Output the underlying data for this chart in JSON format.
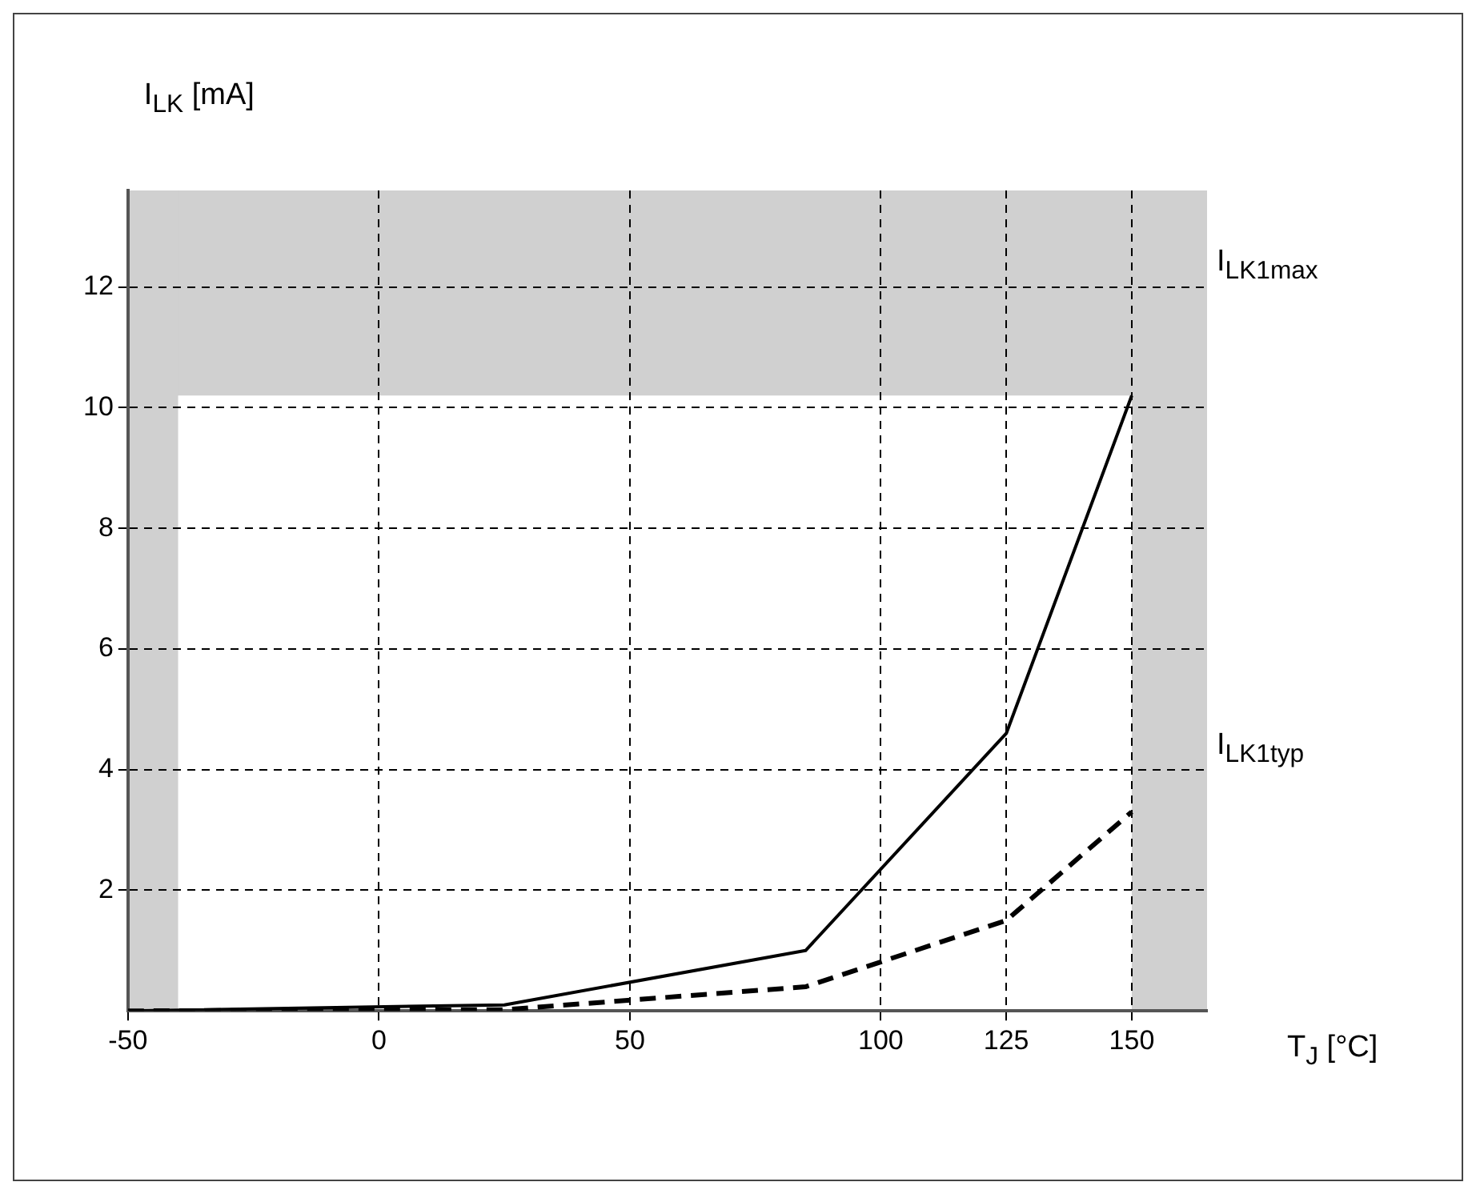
{
  "chart_data": {
    "type": "line",
    "xlabel": "T$_{J}$ [°C]",
    "ylabel": "I$_{LK}$ [mA]",
    "xlim": [
      -50,
      165
    ],
    "ylim": [
      0,
      13.6
    ],
    "xticks": [
      -50,
      0,
      50,
      100,
      125,
      150
    ],
    "yticks": [
      2,
      4,
      6,
      8,
      10,
      12
    ],
    "grid": true,
    "marker": "none",
    "series": [
      {
        "color": "#000000",
        "line_style": "solid",
        "x": [
          -50,
          25,
          85,
          125,
          150
        ],
        "values": [
          0,
          0.1,
          1,
          4.6,
          10.2
        ]
      },
      {
        "color": "#000000",
        "line_style": "dashed",
        "x": [
          -50,
          25,
          85,
          125,
          150
        ],
        "values": [
          0,
          0.02,
          0.4,
          1.5,
          3.3
        ]
      }
    ],
    "bands": [
      {
        "axis": "y",
        "from": 10.2,
        "to": 13.6,
        "color": "#d0d0d0"
      },
      {
        "axis": "x",
        "from": -50,
        "to": -40,
        "color": "#d0d0d0"
      },
      {
        "axis": "x",
        "from": 150,
        "to": 165,
        "color": "#d0d0d0"
      }
    ],
    "annotations": [
      {
        "text": "I$_{LK1max}$",
        "x": 165,
        "y": 12
      },
      {
        "text": "I$_{LK1typ}$",
        "x": 165,
        "y": 4
      }
    ]
  }
}
